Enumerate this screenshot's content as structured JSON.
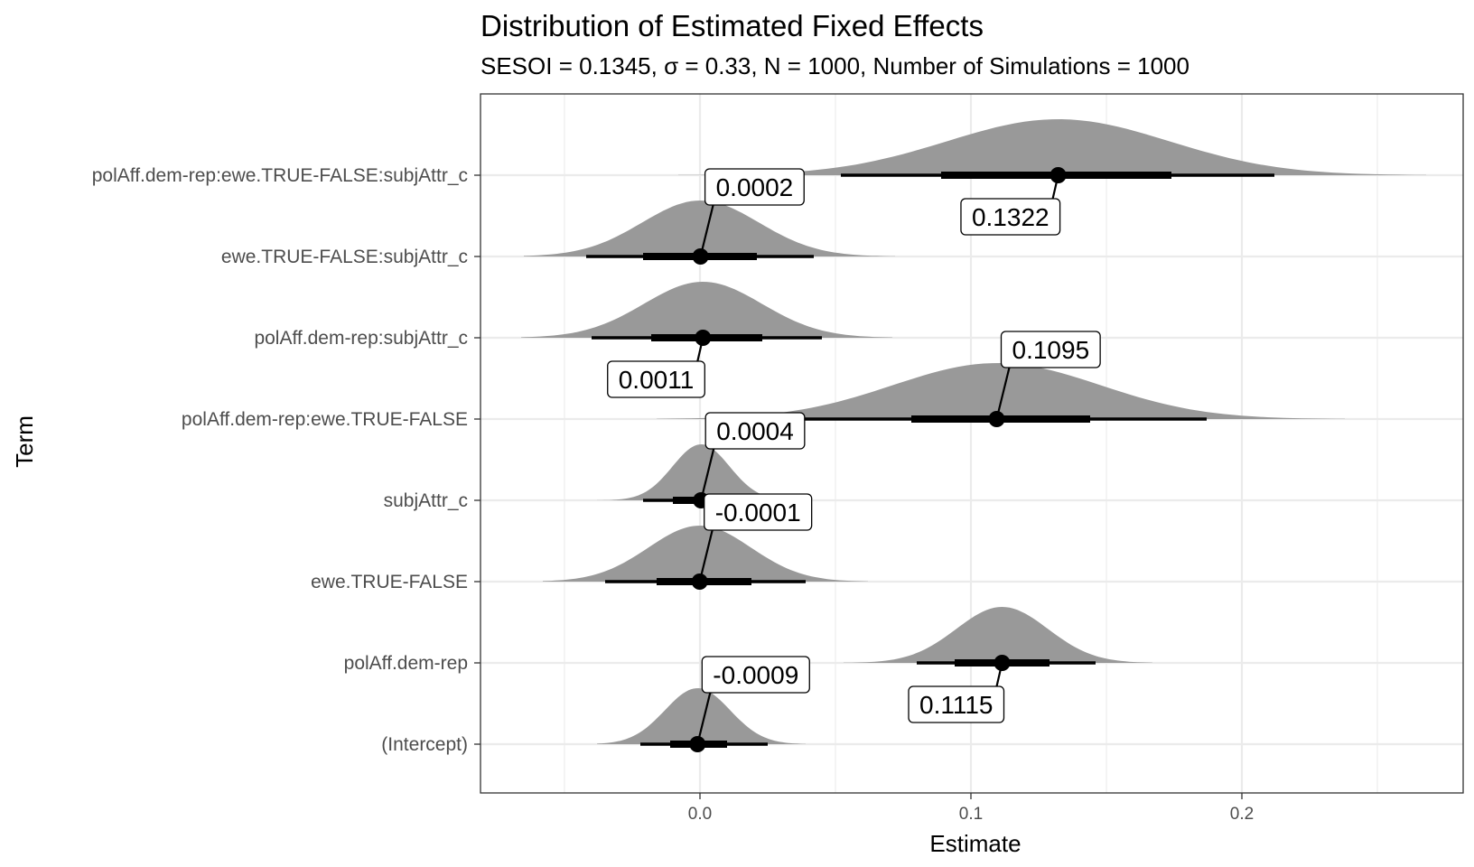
{
  "chart_data": {
    "type": "halfeye",
    "title": "Distribution of Estimated Fixed Effects",
    "subtitle": "SESOI = 0.1345, σ = 0.33, N = 1000, Number of Simulations = 1000",
    "xlabel": "Estimate",
    "ylabel": "Term",
    "xlim": [
      -0.08,
      0.28
    ],
    "x_ticks": [
      0.0,
      0.1,
      0.2
    ],
    "x_tick_labels": [
      "0.0",
      "0.1",
      "0.2"
    ],
    "x_minor_ticks": [
      -0.05,
      0.05,
      0.15,
      0.25
    ],
    "grid": true,
    "colors": {
      "density": "#999999",
      "interval": "#000000",
      "grid": "#ebebeb",
      "border": "#333333"
    },
    "terms": [
      {
        "name": "(Intercept)",
        "point": -0.0009,
        "label": "-0.0009",
        "interval_66": [
          -0.011,
          0.01
        ],
        "interval_95": [
          -0.022,
          0.025
        ],
        "density_range": [
          -0.038,
          0.039
        ],
        "label_position": "above-right"
      },
      {
        "name": "polAff.dem-rep",
        "point": 0.1115,
        "label": "0.1115",
        "interval_66": [
          0.094,
          0.129
        ],
        "interval_95": [
          0.08,
          0.146
        ],
        "density_range": [
          0.053,
          0.167
        ],
        "label_position": "below-left"
      },
      {
        "name": "ewe.TRUE-FALSE",
        "point": -0.0001,
        "label": "-0.0001",
        "interval_66": [
          -0.016,
          0.019
        ],
        "interval_95": [
          -0.035,
          0.039
        ],
        "density_range": [
          -0.058,
          0.062
        ],
        "label_position": "above-right"
      },
      {
        "name": "subjAttr_c",
        "point": 0.0004,
        "label": "0.0004",
        "interval_66": [
          -0.01,
          0.01
        ],
        "interval_95": [
          -0.021,
          0.02
        ],
        "density_range": [
          -0.038,
          0.034
        ],
        "label_position": "above-right"
      },
      {
        "name": "polAff.dem-rep:ewe.TRUE-FALSE",
        "point": 0.1095,
        "label": "0.1095",
        "interval_66": [
          0.078,
          0.144
        ],
        "interval_95": [
          0.038,
          0.187
        ],
        "density_range": [
          -0.016,
          0.238
        ],
        "label_position": "above-right"
      },
      {
        "name": "polAff.dem-rep:subjAttr_c",
        "point": 0.0011,
        "label": "0.0011",
        "interval_66": [
          -0.018,
          0.023
        ],
        "interval_95": [
          -0.04,
          0.045
        ],
        "density_range": [
          -0.066,
          0.071
        ],
        "label_position": "below-left"
      },
      {
        "name": "ewe.TRUE-FALSE:subjAttr_c",
        "point": 0.0002,
        "label": "0.0002",
        "interval_66": [
          -0.021,
          0.021
        ],
        "interval_95": [
          -0.042,
          0.042
        ],
        "density_range": [
          -0.065,
          0.072
        ],
        "label_position": "above-right"
      },
      {
        "name": "polAff.dem-rep:ewe.TRUE-FALSE:subjAttr_c",
        "point": 0.1322,
        "label": "0.1322",
        "interval_66": [
          0.089,
          0.174
        ],
        "interval_95": [
          0.052,
          0.212
        ],
        "density_range": [
          -0.008,
          0.268
        ],
        "label_position": "below-left"
      }
    ]
  }
}
